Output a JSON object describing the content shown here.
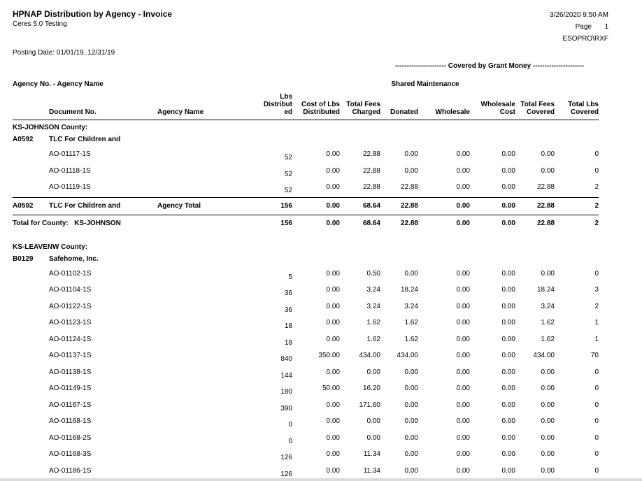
{
  "page": {
    "title": "HPNAP Distribution by Agency - Invoice",
    "company": "Ceres 5.0 Testing",
    "datetime": "3/26/2020 9:50 AM",
    "page_label": "Page",
    "page_number": "1",
    "user_id": "ESOPRO\\RXF",
    "posting_date": "Posting Date: 01/01/19..12/31/19"
  },
  "headers": {
    "grant_banner": "---------------------- Covered by Grant Money ----------------------",
    "agency_line": "Agency No. - Agency Name",
    "shared_maintenance": "Shared Maintenance",
    "columns": {
      "document_no": "Document No.",
      "agency_name": "Agency Name",
      "lbs_distributed": [
        "Lbs",
        "Distribut",
        "ed"
      ],
      "cost_of_lbs": [
        "Cost of Lbs",
        "Distributed"
      ],
      "total_fees_charged": [
        "Total Fees",
        "Charged"
      ],
      "donated": "Donated",
      "wholesale": "Wholesale",
      "wholesale_cost": [
        "Wholesale",
        "Cost"
      ],
      "total_fees_covered": [
        "Total Fees",
        "Covered"
      ],
      "total_lbs_covered": [
        "Total Lbs",
        "Covered"
      ]
    }
  },
  "report": {
    "rows": [
      {
        "type": "county",
        "label": "KS-JOHNSON County:"
      },
      {
        "type": "agency",
        "no": "A0592",
        "name": "TLC For Children and"
      },
      {
        "type": "data",
        "doc": "AO-01117-1S",
        "vals": [
          "52",
          "0.00",
          "22.88",
          "0.00",
          "0.00",
          "0.00",
          "0.00",
          "0"
        ]
      },
      {
        "type": "data",
        "doc": "AO-01118-1S",
        "vals": [
          "52",
          "0.00",
          "22.88",
          "0.00",
          "0.00",
          "0.00",
          "0.00",
          "0"
        ]
      },
      {
        "type": "data",
        "doc": "AO-01119-1S",
        "vals": [
          "52",
          "0.00",
          "22.88",
          "22.88",
          "0.00",
          "0.00",
          "22.88",
          "2"
        ]
      },
      {
        "type": "agency_total",
        "no": "A0592",
        "name": "TLC For Children and",
        "label": "Agency Total",
        "vals": [
          "156",
          "0.00",
          "68.64",
          "22.88",
          "0.00",
          "0.00",
          "22.88",
          "2"
        ]
      },
      {
        "type": "county_total",
        "label": "Total for County:   KS-JOHNSON",
        "vals": [
          "156",
          "0.00",
          "68.64",
          "22.88",
          "0.00",
          "0.00",
          "22.88",
          "2"
        ]
      },
      {
        "type": "spacer",
        "h": 10
      },
      {
        "type": "county",
        "label": "KS-LEAVENW County:"
      },
      {
        "type": "agency",
        "no": "B0129",
        "name": "Safehome, Inc."
      },
      {
        "type": "data",
        "doc": "AO-01102-1S",
        "vals": [
          "5",
          "0.00",
          "0.50",
          "0.00",
          "0.00",
          "0.00",
          "0.00",
          "0"
        ]
      },
      {
        "type": "data",
        "doc": "AO-01104-1S",
        "vals": [
          "36",
          "0.00",
          "3.24",
          "18.24",
          "0.00",
          "0.00",
          "18.24",
          "3"
        ]
      },
      {
        "type": "data",
        "doc": "AO-01122-1S",
        "vals": [
          "36",
          "0.00",
          "3.24",
          "3.24",
          "0.00",
          "0.00",
          "3.24",
          "2"
        ]
      },
      {
        "type": "data",
        "doc": "AO-01123-1S",
        "vals": [
          "18",
          "0.00",
          "1.62",
          "1.62",
          "0.00",
          "0.00",
          "1.62",
          "1"
        ]
      },
      {
        "type": "data",
        "doc": "AO-01124-1S",
        "vals": [
          "18",
          "0.00",
          "1.62",
          "1.62",
          "0.00",
          "0.00",
          "1.62",
          "1"
        ]
      },
      {
        "type": "data",
        "doc": "AO-01137-1S",
        "vals": [
          "840",
          "350.00",
          "434.00",
          "434.00",
          "0.00",
          "0.00",
          "434.00",
          "70"
        ]
      },
      {
        "type": "data",
        "doc": "AO-01138-1S",
        "vals": [
          "144",
          "0.00",
          "0.00",
          "0.00",
          "0.00",
          "0.00",
          "0.00",
          "0"
        ]
      },
      {
        "type": "data",
        "doc": "AO-01149-1S",
        "vals": [
          "180",
          "50.00",
          "16.20",
          "0.00",
          "0.00",
          "0.00",
          "0.00",
          "0"
        ]
      },
      {
        "type": "data",
        "doc": "AO-01167-1S",
        "vals": [
          "390",
          "0.00",
          "171.60",
          "0.00",
          "0.00",
          "0.00",
          "0.00",
          "0"
        ]
      },
      {
        "type": "data",
        "doc": "AO-01168-1S",
        "vals": [
          "0",
          "0.00",
          "0.00",
          "0.00",
          "0.00",
          "0.00",
          "0.00",
          "0"
        ]
      },
      {
        "type": "data",
        "doc": "AO-01168-2S",
        "vals": [
          "0",
          "0.00",
          "0.00",
          "0.00",
          "0.00",
          "0.00",
          "0.00",
          "0"
        ]
      },
      {
        "type": "data",
        "doc": "AO-01168-3S",
        "vals": [
          "126",
          "0.00",
          "11.34",
          "0.00",
          "0.00",
          "0.00",
          "0.00",
          "0"
        ]
      },
      {
        "type": "data",
        "doc": "AO-01186-1S",
        "vals": [
          "126",
          "0.00",
          "11.34",
          "0.00",
          "0.00",
          "0.00",
          "0.00",
          "0"
        ]
      }
    ]
  }
}
